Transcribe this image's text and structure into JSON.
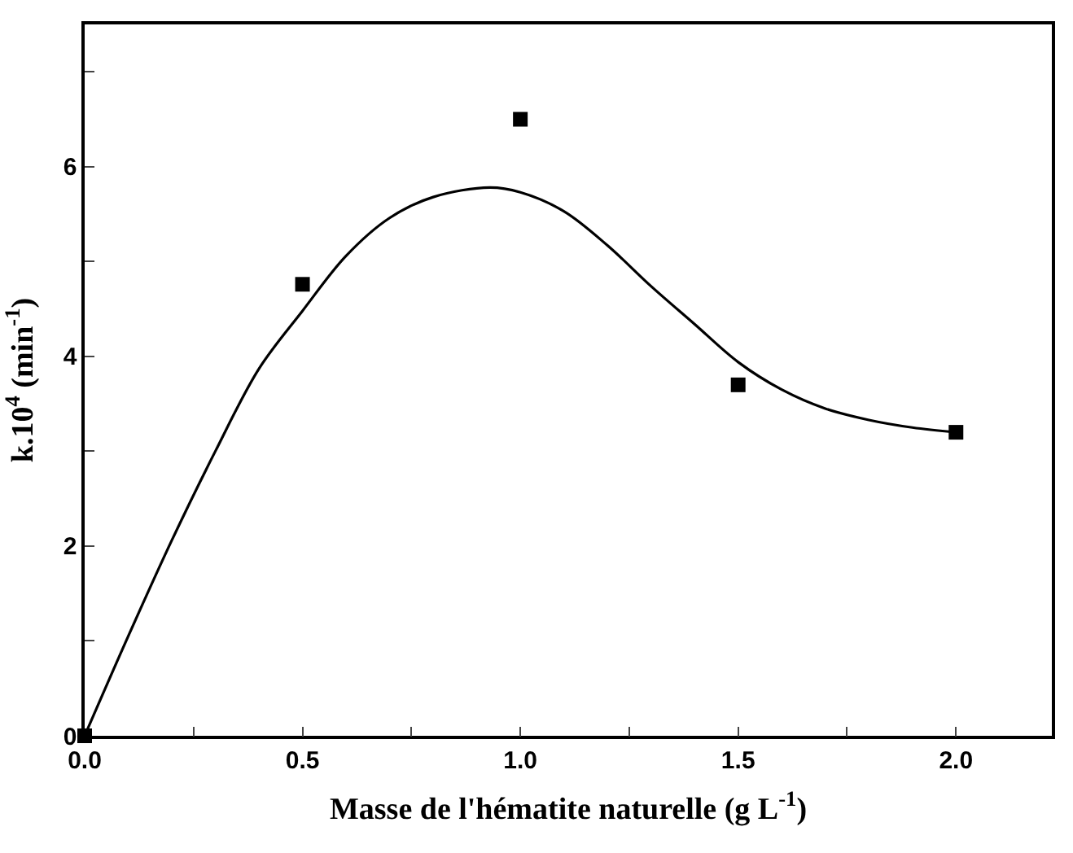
{
  "chart_data": {
    "type": "scatter",
    "xlabel": "Masse de l'hématite naturelle (g L$^{-1}$)",
    "ylabel": "k.10$^{4}$ (min$^{-1}$)",
    "xlim": [
      0,
      2.22
    ],
    "ylim": [
      0,
      7.5
    ],
    "xticks": [
      {
        "value": 0,
        "label": "0.0"
      },
      {
        "value": 0.25,
        "label": null
      },
      {
        "value": 0.5,
        "label": "0.5"
      },
      {
        "value": 0.75,
        "label": null
      },
      {
        "value": 1,
        "label": "1.0"
      },
      {
        "value": 1.25,
        "label": null
      },
      {
        "value": 1.5,
        "label": "1.5"
      },
      {
        "value": 1.75,
        "label": null
      },
      {
        "value": 2,
        "label": "2.0"
      }
    ],
    "yticks": [
      0,
      {
        "value": 1,
        "label": null
      },
      2,
      {
        "value": 3,
        "label": null
      },
      4,
      {
        "value": 5,
        "label": null
      },
      6,
      {
        "value": 7,
        "label": null
      }
    ],
    "marker": "square",
    "series": [
      {
        "color": "#000000",
        "x": [
          0,
          0.5,
          1.0,
          1.5,
          2.0
        ],
        "values": [
          0,
          4.76,
          6.5,
          3.7,
          3.2
        ]
      },
      {
        "type": "line",
        "color": "#000000",
        "marker": "none",
        "x": [
          0,
          0.1,
          0.2,
          0.3,
          0.4,
          0.5,
          0.6,
          0.7,
          0.8,
          0.93,
          1.0,
          1.1,
          1.2,
          1.3,
          1.4,
          1.5,
          1.6,
          1.7,
          1.8,
          1.9,
          2.0
        ],
        "values": [
          0,
          1.05,
          2.06,
          3.0,
          3.87,
          4.48,
          5.06,
          5.46,
          5.68,
          5.78,
          5.73,
          5.53,
          5.17,
          4.74,
          4.34,
          3.94,
          3.65,
          3.45,
          3.33,
          3.25,
          3.2
        ]
      }
    ]
  }
}
